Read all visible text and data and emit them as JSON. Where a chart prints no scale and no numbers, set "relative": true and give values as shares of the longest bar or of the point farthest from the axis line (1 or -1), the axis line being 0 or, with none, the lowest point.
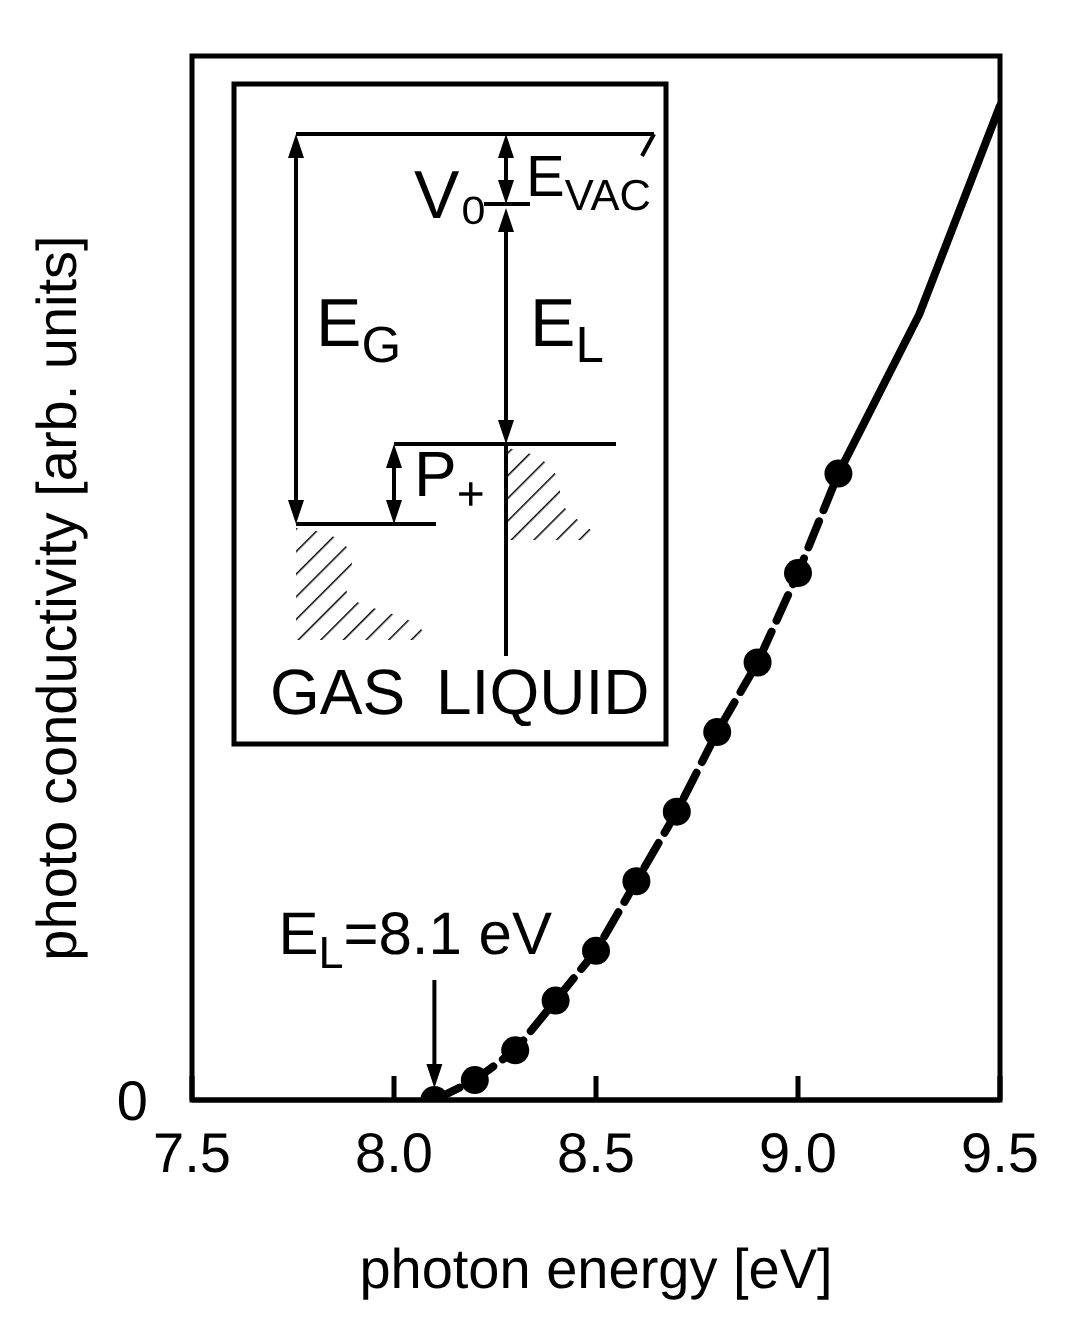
{
  "chart_data": {
    "type": "line",
    "xlabel": "photon  energy [eV]",
    "ylabel": "photo  conductivity [arb. units]",
    "relative": true,
    "xlim": [
      7.5,
      9.5
    ],
    "xticks": [
      7.5,
      {
        "value": 8,
        "label": "8.0"
      },
      8.5,
      {
        "value": 9,
        "label": "9.0"
      },
      9.5
    ],
    "series": [
      {
        "color": "#000000",
        "marker": "circle",
        "line_style": "dashed",
        "x": [
          8.1,
          8.2,
          8.3,
          8.4,
          8.5,
          8.6,
          8.7,
          8.8,
          8.9,
          9.0,
          9.1
        ],
        "values": [
          0,
          0.02,
          0.05,
          0.1,
          0.15,
          0.22,
          0.29,
          0.37,
          0.44,
          0.53,
          0.63
        ]
      },
      {
        "color": "#000000",
        "marker": "none",
        "line_style": "solid",
        "x": [
          9.1,
          9.3,
          9.5
        ],
        "values": [
          0.63,
          0.79,
          1
        ]
      }
    ],
    "annotations": [
      {
        "text": "E$_{L}$=8.1 eV",
        "x": 8.1,
        "y": 0
      },
      "0",
      "V₀",
      "E$_{VAC}$",
      "E$_{G}$",
      "E$_{L}$",
      "P$_{+}$",
      "GAS",
      "LIQUID"
    ]
  }
}
